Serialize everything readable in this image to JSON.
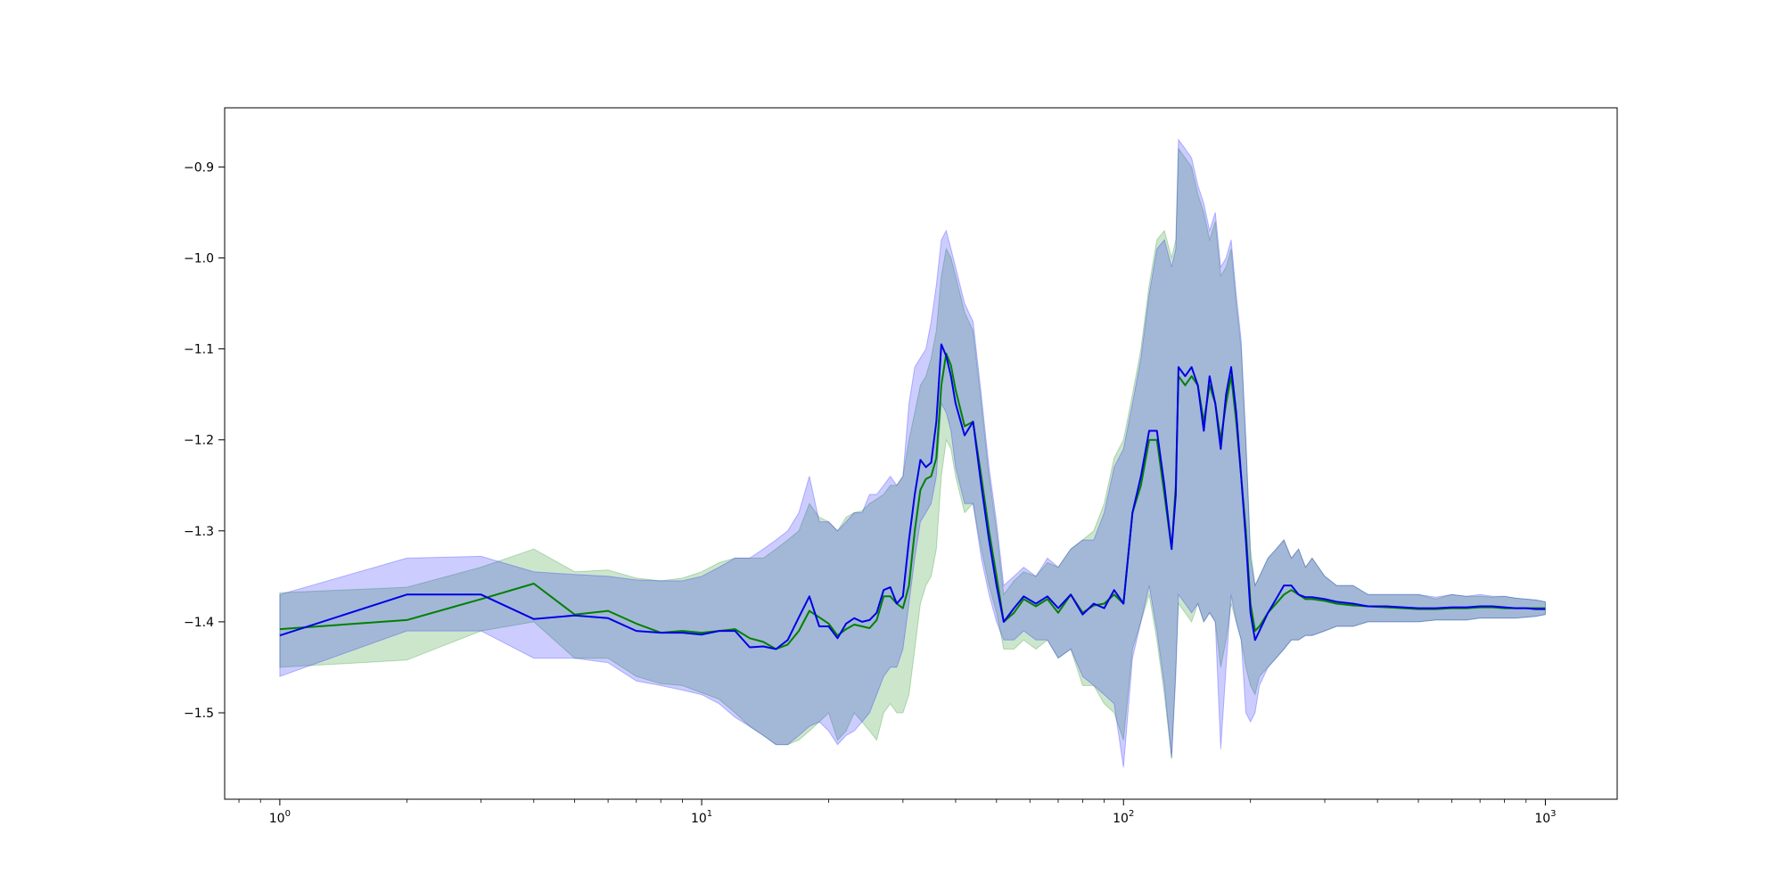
{
  "chart_data": {
    "type": "line",
    "xscale": "log",
    "xlim": [
      0.74,
      1480
    ],
    "ylim": [
      -1.595,
      -0.835
    ],
    "xticks": [
      {
        "value": 1,
        "base": "10",
        "exp": "0"
      },
      {
        "value": 10,
        "base": "10",
        "exp": "1"
      },
      {
        "value": 100,
        "base": "10",
        "exp": "2"
      },
      {
        "value": 1000,
        "base": "10",
        "exp": "3"
      }
    ],
    "yticks": [
      {
        "value": -0.9,
        "label": "−0.9"
      },
      {
        "value": -1.0,
        "label": "−1.0"
      },
      {
        "value": -1.1,
        "label": "−1.1"
      },
      {
        "value": -1.2,
        "label": "−1.2"
      },
      {
        "value": -1.3,
        "label": "−1.3"
      },
      {
        "value": -1.4,
        "label": "−1.4"
      },
      {
        "value": -1.5,
        "label": "−1.5"
      }
    ],
    "grid": false,
    "colors": {
      "green_line": "#008000",
      "green_band": "#008000",
      "blue_line": "#0000e6",
      "blue_band": "#0000ff"
    },
    "series": [
      {
        "color": "green",
        "x": [
          1,
          2,
          3,
          4,
          5,
          6,
          7,
          8,
          9,
          10,
          11,
          12,
          13,
          14,
          15,
          16,
          17,
          18,
          19,
          20,
          21,
          22,
          23,
          24,
          25,
          26,
          27,
          28,
          29,
          30,
          31,
          32,
          33,
          34,
          35,
          36,
          37,
          38,
          39,
          40,
          42,
          44,
          46,
          48,
          50,
          52,
          55,
          58,
          62,
          66,
          70,
          75,
          80,
          85,
          90,
          95,
          100,
          105,
          110,
          115,
          120,
          125,
          130,
          133,
          135,
          140,
          145,
          150,
          155,
          160,
          165,
          170,
          175,
          180,
          185,
          190,
          195,
          200,
          205,
          210,
          220,
          230,
          240,
          250,
          260,
          270,
          280,
          300,
          320,
          350,
          380,
          420,
          460,
          500,
          550,
          600,
          650,
          700,
          750,
          800,
          850,
          900,
          950,
          1000
        ],
        "y": [
          -1.408,
          -1.398,
          -1.375,
          -1.358,
          -1.392,
          -1.388,
          -1.402,
          -1.412,
          -1.41,
          -1.412,
          -1.41,
          -1.408,
          -1.418,
          -1.422,
          -1.43,
          -1.425,
          -1.41,
          -1.388,
          -1.395,
          -1.402,
          -1.415,
          -1.408,
          -1.403,
          -1.405,
          -1.407,
          -1.398,
          -1.372,
          -1.372,
          -1.38,
          -1.385,
          -1.36,
          -1.3,
          -1.255,
          -1.243,
          -1.24,
          -1.22,
          -1.14,
          -1.105,
          -1.118,
          -1.145,
          -1.185,
          -1.18,
          -1.24,
          -1.3,
          -1.35,
          -1.4,
          -1.39,
          -1.375,
          -1.383,
          -1.375,
          -1.39,
          -1.37,
          -1.39,
          -1.382,
          -1.38,
          -1.37,
          -1.38,
          -1.28,
          -1.25,
          -1.2,
          -1.2,
          -1.26,
          -1.32,
          -1.25,
          -1.13,
          -1.14,
          -1.13,
          -1.14,
          -1.18,
          -1.14,
          -1.16,
          -1.2,
          -1.16,
          -1.13,
          -1.18,
          -1.24,
          -1.3,
          -1.38,
          -1.41,
          -1.405,
          -1.39,
          -1.38,
          -1.37,
          -1.365,
          -1.37,
          -1.375,
          -1.375,
          -1.377,
          -1.38,
          -1.382,
          -1.383,
          -1.384,
          -1.385,
          -1.386,
          -1.386,
          -1.385,
          -1.385,
          -1.384,
          -1.384,
          -1.385,
          -1.385,
          -1.385,
          -1.385,
          -1.385
        ],
        "upper": [
          -1.368,
          -1.362,
          -1.34,
          -1.32,
          -1.345,
          -1.343,
          -1.352,
          -1.355,
          -1.352,
          -1.345,
          -1.335,
          -1.33,
          -1.33,
          -1.33,
          -1.32,
          -1.31,
          -1.3,
          -1.27,
          -1.285,
          -1.29,
          -1.3,
          -1.285,
          -1.28,
          -1.278,
          -1.27,
          -1.265,
          -1.26,
          -1.25,
          -1.25,
          -1.24,
          -1.2,
          -1.17,
          -1.14,
          -1.13,
          -1.11,
          -1.08,
          -1.02,
          -0.99,
          -1.0,
          -1.02,
          -1.06,
          -1.08,
          -1.16,
          -1.24,
          -1.3,
          -1.37,
          -1.355,
          -1.345,
          -1.35,
          -1.335,
          -1.34,
          -1.32,
          -1.31,
          -1.3,
          -1.27,
          -1.22,
          -1.2,
          -1.15,
          -1.1,
          -1.03,
          -0.98,
          -0.97,
          -1.0,
          -0.98,
          -0.88,
          -0.89,
          -0.9,
          -0.93,
          -0.95,
          -0.98,
          -0.96,
          -1.02,
          -1.01,
          -0.99,
          -1.05,
          -1.1,
          -1.2,
          -1.32,
          -1.36,
          -1.35,
          -1.33,
          -1.32,
          -1.31,
          -1.33,
          -1.32,
          -1.34,
          -1.33,
          -1.35,
          -1.36,
          -1.36,
          -1.37,
          -1.37,
          -1.37,
          -1.37,
          -1.375,
          -1.37,
          -1.372,
          -1.372,
          -1.373,
          -1.372,
          -1.374,
          -1.375,
          -1.376,
          -1.378
        ],
        "lower": [
          -1.45,
          -1.442,
          -1.41,
          -1.4,
          -1.44,
          -1.44,
          -1.46,
          -1.468,
          -1.47,
          -1.478,
          -1.485,
          -1.5,
          -1.515,
          -1.525,
          -1.535,
          -1.535,
          -1.53,
          -1.52,
          -1.51,
          -1.5,
          -1.53,
          -1.52,
          -1.5,
          -1.51,
          -1.52,
          -1.53,
          -1.5,
          -1.49,
          -1.5,
          -1.5,
          -1.48,
          -1.43,
          -1.38,
          -1.36,
          -1.35,
          -1.32,
          -1.24,
          -1.2,
          -1.21,
          -1.24,
          -1.28,
          -1.27,
          -1.32,
          -1.36,
          -1.39,
          -1.43,
          -1.43,
          -1.42,
          -1.43,
          -1.42,
          -1.44,
          -1.43,
          -1.47,
          -1.47,
          -1.49,
          -1.5,
          -1.53,
          -1.43,
          -1.4,
          -1.37,
          -1.42,
          -1.48,
          -1.55,
          -1.45,
          -1.38,
          -1.39,
          -1.4,
          -1.38,
          -1.4,
          -1.39,
          -1.4,
          -1.45,
          -1.42,
          -1.38,
          -1.4,
          -1.42,
          -1.45,
          -1.47,
          -1.48,
          -1.46,
          -1.45,
          -1.44,
          -1.43,
          -1.42,
          -1.42,
          -1.415,
          -1.415,
          -1.41,
          -1.405,
          -1.405,
          -1.4,
          -1.4,
          -1.4,
          -1.4,
          -1.398,
          -1.398,
          -1.398,
          -1.396,
          -1.396,
          -1.396,
          -1.396,
          -1.395,
          -1.394,
          -1.392
        ]
      },
      {
        "color": "blue",
        "x": [
          1,
          2,
          3,
          4,
          5,
          6,
          7,
          8,
          9,
          10,
          11,
          12,
          13,
          14,
          15,
          16,
          17,
          18,
          19,
          20,
          21,
          22,
          23,
          24,
          25,
          26,
          27,
          28,
          29,
          30,
          31,
          32,
          33,
          34,
          35,
          36,
          37,
          38,
          39,
          40,
          42,
          44,
          46,
          48,
          50,
          52,
          55,
          58,
          62,
          66,
          70,
          75,
          80,
          85,
          90,
          95,
          100,
          105,
          110,
          115,
          120,
          125,
          130,
          133,
          135,
          140,
          145,
          150,
          155,
          160,
          165,
          170,
          175,
          180,
          185,
          190,
          195,
          200,
          205,
          210,
          220,
          230,
          240,
          250,
          260,
          270,
          280,
          300,
          320,
          350,
          380,
          420,
          460,
          500,
          550,
          600,
          650,
          700,
          750,
          800,
          850,
          900,
          950,
          1000
        ],
        "y": [
          -1.415,
          -1.37,
          -1.37,
          -1.397,
          -1.393,
          -1.396,
          -1.41,
          -1.412,
          -1.412,
          -1.414,
          -1.41,
          -1.41,
          -1.428,
          -1.427,
          -1.43,
          -1.42,
          -1.395,
          -1.372,
          -1.405,
          -1.405,
          -1.418,
          -1.402,
          -1.396,
          -1.4,
          -1.398,
          -1.39,
          -1.365,
          -1.362,
          -1.38,
          -1.372,
          -1.31,
          -1.26,
          -1.222,
          -1.23,
          -1.225,
          -1.18,
          -1.095,
          -1.108,
          -1.13,
          -1.16,
          -1.195,
          -1.18,
          -1.25,
          -1.31,
          -1.36,
          -1.4,
          -1.385,
          -1.372,
          -1.38,
          -1.372,
          -1.385,
          -1.37,
          -1.392,
          -1.38,
          -1.385,
          -1.365,
          -1.38,
          -1.28,
          -1.24,
          -1.19,
          -1.19,
          -1.25,
          -1.32,
          -1.26,
          -1.12,
          -1.13,
          -1.12,
          -1.14,
          -1.19,
          -1.13,
          -1.16,
          -1.21,
          -1.15,
          -1.12,
          -1.17,
          -1.24,
          -1.31,
          -1.39,
          -1.42,
          -1.41,
          -1.39,
          -1.375,
          -1.36,
          -1.36,
          -1.37,
          -1.373,
          -1.373,
          -1.375,
          -1.378,
          -1.38,
          -1.383,
          -1.383,
          -1.384,
          -1.385,
          -1.385,
          -1.384,
          -1.384,
          -1.383,
          -1.383,
          -1.384,
          -1.385,
          -1.385,
          -1.386,
          -1.386
        ],
        "upper": [
          -1.37,
          -1.33,
          -1.328,
          -1.345,
          -1.348,
          -1.35,
          -1.354,
          -1.355,
          -1.355,
          -1.35,
          -1.34,
          -1.33,
          -1.33,
          -1.32,
          -1.31,
          -1.3,
          -1.28,
          -1.24,
          -1.29,
          -1.29,
          -1.3,
          -1.29,
          -1.28,
          -1.28,
          -1.26,
          -1.26,
          -1.25,
          -1.24,
          -1.25,
          -1.24,
          -1.16,
          -1.12,
          -1.11,
          -1.1,
          -1.07,
          -1.03,
          -0.98,
          -0.97,
          -0.99,
          -1.01,
          -1.05,
          -1.07,
          -1.15,
          -1.23,
          -1.29,
          -1.36,
          -1.35,
          -1.34,
          -1.35,
          -1.33,
          -1.34,
          -1.32,
          -1.31,
          -1.31,
          -1.28,
          -1.23,
          -1.21,
          -1.16,
          -1.11,
          -1.04,
          -0.99,
          -0.98,
          -1.01,
          -0.99,
          -0.87,
          -0.88,
          -0.89,
          -0.92,
          -0.94,
          -0.97,
          -0.95,
          -1.01,
          -1.0,
          -0.98,
          -1.04,
          -1.09,
          -1.2,
          -1.33,
          -1.36,
          -1.35,
          -1.33,
          -1.32,
          -1.31,
          -1.33,
          -1.32,
          -1.34,
          -1.33,
          -1.35,
          -1.36,
          -1.36,
          -1.37,
          -1.37,
          -1.37,
          -1.37,
          -1.373,
          -1.37,
          -1.372,
          -1.37,
          -1.372,
          -1.372,
          -1.374,
          -1.375,
          -1.376,
          -1.378
        ],
        "lower": [
          -1.46,
          -1.41,
          -1.41,
          -1.44,
          -1.44,
          -1.445,
          -1.465,
          -1.47,
          -1.475,
          -1.48,
          -1.49,
          -1.505,
          -1.515,
          -1.525,
          -1.535,
          -1.535,
          -1.525,
          -1.515,
          -1.51,
          -1.52,
          -1.535,
          -1.525,
          -1.52,
          -1.51,
          -1.5,
          -1.48,
          -1.46,
          -1.45,
          -1.45,
          -1.43,
          -1.38,
          -1.33,
          -1.29,
          -1.28,
          -1.27,
          -1.24,
          -1.16,
          -1.17,
          -1.19,
          -1.23,
          -1.27,
          -1.27,
          -1.33,
          -1.37,
          -1.4,
          -1.42,
          -1.42,
          -1.41,
          -1.42,
          -1.42,
          -1.44,
          -1.43,
          -1.46,
          -1.47,
          -1.48,
          -1.49,
          -1.56,
          -1.44,
          -1.4,
          -1.36,
          -1.41,
          -1.47,
          -1.55,
          -1.46,
          -1.37,
          -1.38,
          -1.39,
          -1.38,
          -1.4,
          -1.39,
          -1.4,
          -1.54,
          -1.45,
          -1.37,
          -1.4,
          -1.42,
          -1.5,
          -1.51,
          -1.5,
          -1.47,
          -1.45,
          -1.44,
          -1.43,
          -1.42,
          -1.42,
          -1.415,
          -1.415,
          -1.41,
          -1.405,
          -1.405,
          -1.4,
          -1.4,
          -1.4,
          -1.4,
          -1.398,
          -1.398,
          -1.398,
          -1.396,
          -1.396,
          -1.396,
          -1.396,
          -1.395,
          -1.394,
          -1.392
        ]
      }
    ]
  }
}
